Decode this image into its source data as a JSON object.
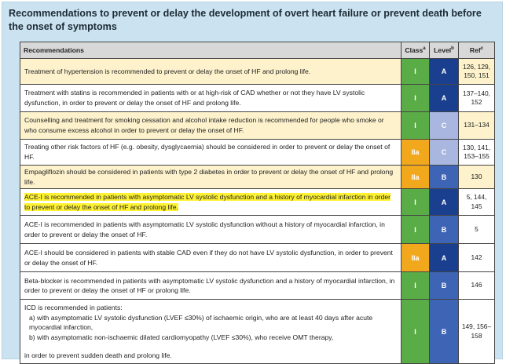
{
  "title": "Recommendations to prevent or delay the development of overt heart failure or prevent death before the onset of symptoms",
  "headers": {
    "recommendations": "Recommendations",
    "class": "Class",
    "class_sup": "a",
    "level": "Level",
    "level_sup": "b",
    "ref": "Ref",
    "ref_sup": "c"
  },
  "rows": [
    {
      "text": "Treatment of hypertension is recommended to prevent or delay the onset of HF and prolong life.",
      "class": "I",
      "level": "A",
      "ref": "126, 129, 150, 151"
    },
    {
      "text": "Treatment with statins is recommended in patients with or at high-risk of CAD whether or not they have LV systolic dysfunction, in order to prevent or delay the onset of HF and prolong life.",
      "class": "I",
      "level": "A",
      "ref": "137–140, 152"
    },
    {
      "text": "Counselling and treatment for smoking cessation and alcohol intake reduction is recommended for people who smoke or who consume excess alcohol in order to prevent or delay the onset of HF.",
      "class": "I",
      "level": "C",
      "ref": "131–134"
    },
    {
      "text": "Treating other risk factors of HF (e.g. obesity, dysglycaemia) should be considered in order to prevent or delay the onset of HF.",
      "class": "IIa",
      "level": "C",
      "ref": "130, 141, 153–155"
    },
    {
      "text": "Empagliflozin should be considered in patients with type 2 diabetes in order to prevent or delay the onset of HF and prolong life.",
      "class": "IIa",
      "level": "B",
      "ref": "130"
    },
    {
      "text": "ACE-I is recommended in patients with asymptomatic LV systolic dysfunction and a history of myocardial infarction in order to prevent or delay the onset of HF and prolong life.",
      "class": "I",
      "level": "A",
      "ref": "5, 144, 145"
    },
    {
      "text": "ACE-I is recommended in patients with asymptomatic LV systolic dysfunction without a history of myocardial infarction, in order to prevent or delay the onset of HF.",
      "class": "I",
      "level": "B",
      "ref": "5"
    },
    {
      "text": "ACE-I should be considered in patients with stable CAD even if they do not have LV systolic dysfunction, in order to prevent or delay the onset of HF.",
      "class": "IIa",
      "level": "A",
      "ref": "142"
    },
    {
      "text": "Beta-blocker is recommended in patients with asymptomatic LV systolic dysfunction and a history of myocardial infarction, in order to prevent or delay the onset of HF or prolong life.",
      "class": "I",
      "level": "B",
      "ref": "146"
    },
    {
      "intro": "ICD is recommended in patients:",
      "item_a": "a) with asymptomatic LV systolic dysfunction (LVEF ≤30%) of ischaemic origin, who are at least 40 days after acute myocardial infarction,",
      "item_b": "b) with asymptomatic non-ischaemic dilated cardiomyopathy (LVEF ≤30%), who receive OMT therapy,",
      "outro": "in order to prevent sudden death and prolong life.",
      "class": "I",
      "level": "B",
      "ref": "149, 156–158"
    }
  ]
}
